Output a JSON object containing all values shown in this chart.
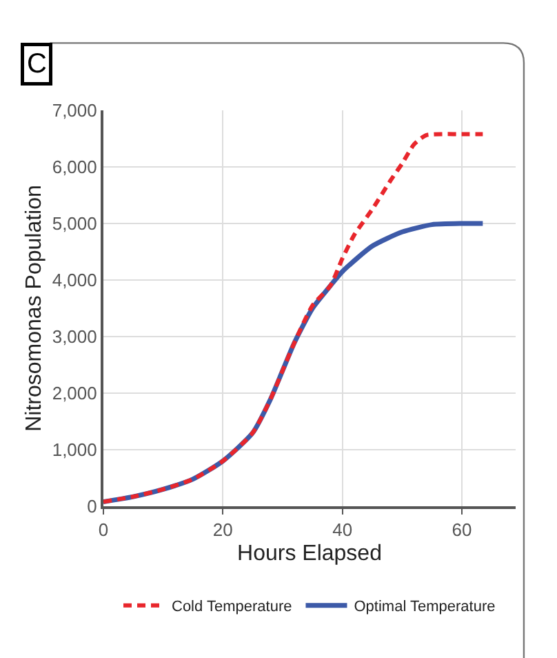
{
  "chart_data": {
    "type": "line",
    "xlabel": "Hours Elapsed",
    "ylabel": "Nitrosomonas Population",
    "annotations": [
      "C"
    ],
    "xlim": [
      0,
      69
    ],
    "xticks": [
      0,
      20,
      40,
      60
    ],
    "ylim": [
      0,
      7000
    ],
    "yticks": [
      0,
      {
        "value": 1000,
        "label": "1,000"
      },
      {
        "value": 2000,
        "label": "2,000"
      },
      {
        "value": 3000,
        "label": "3,000"
      },
      {
        "value": 4000,
        "label": "4,000"
      },
      {
        "value": 5000,
        "label": "5,000"
      },
      {
        "value": 6000,
        "label": "6,000"
      },
      {
        "value": 7000,
        "label": "7,000"
      }
    ],
    "grid": true,
    "legend": "bottom",
    "marker": "none",
    "series": [
      {
        "name": "Cold Temperature",
        "color": "#e8262c",
        "line_style": "dashed",
        "x": [
          0,
          5,
          10,
          15,
          20,
          25,
          28,
          30,
          32,
          35,
          38,
          40,
          42,
          45,
          48,
          50,
          52,
          54,
          57,
          60,
          63.5
        ],
        "values": [
          80,
          170,
          300,
          480,
          800,
          1300,
          1900,
          2400,
          2900,
          3550,
          3900,
          4380,
          4800,
          5250,
          5750,
          6060,
          6400,
          6560,
          6580,
          6580,
          6580
        ]
      },
      {
        "name": "Optimal Temperature",
        "color": "#3d5aa8",
        "line_style": "solid",
        "x": [
          0,
          5,
          10,
          15,
          20,
          25,
          28,
          30,
          32,
          35,
          38,
          40,
          45,
          50,
          55,
          60,
          63.5
        ],
        "values": [
          80,
          170,
          300,
          480,
          800,
          1300,
          1900,
          2400,
          2900,
          3500,
          3900,
          4150,
          4600,
          4850,
          4980,
          5000,
          5000
        ]
      }
    ]
  }
}
